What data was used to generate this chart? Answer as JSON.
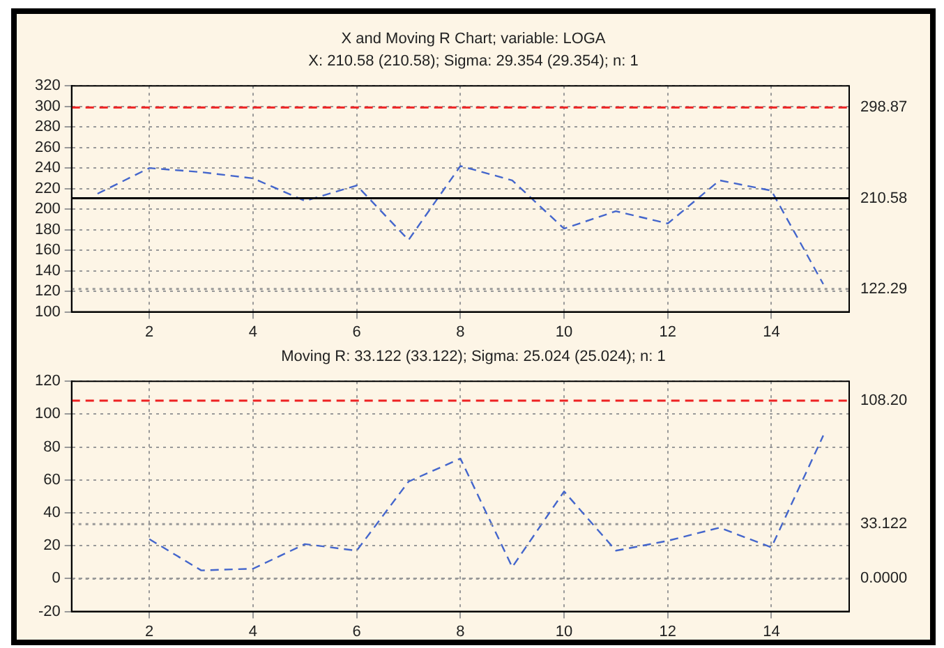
{
  "chart_data": [
    {
      "type": "line",
      "title": "X and Moving R Chart; variable: LOGA",
      "subtitle": "X: 210.58 (210.58); Sigma: 29.354 (29.354); n: 1",
      "x": [
        1,
        2,
        3,
        4,
        5,
        6,
        7,
        8,
        9,
        10,
        11,
        12,
        13,
        14,
        15
      ],
      "series": [
        {
          "color": "#4466cc",
          "values": [
            215,
            240,
            236,
            230,
            208,
            223,
            170,
            242,
            228,
            181,
            198,
            186,
            228,
            218,
            127
          ]
        }
      ],
      "xlim": [
        0.5,
        15.5
      ],
      "xticks": [
        2,
        4,
        6,
        8,
        10,
        12,
        14
      ],
      "ylim": [
        100,
        320
      ],
      "yticks": [
        100,
        120,
        140,
        160,
        180,
        200,
        220,
        240,
        260,
        280,
        300,
        320
      ],
      "ref_lines": [
        {
          "axis": "y",
          "value": 298.87,
          "label": "298.87",
          "color": "#ee2222",
          "line_style": "dashed"
        },
        {
          "axis": "y",
          "value": 210.58,
          "label": "210.58",
          "color": "#000000",
          "line_style": "solid"
        },
        {
          "axis": "y",
          "value": 122.29,
          "label": "122.29",
          "color": "#999999",
          "line_style": "dotted"
        }
      ],
      "grid": true,
      "legend": false,
      "marker": "none",
      "line_style": "dashed"
    },
    {
      "type": "line",
      "title": "Moving R: 33.122 (33.122); Sigma: 25.024 (25.024); n: 1",
      "series": [
        {
          "color": "#4466cc",
          "x": [
            2,
            3,
            4,
            5,
            6,
            7,
            8,
            9,
            10,
            11,
            12,
            13,
            14,
            15
          ],
          "values": [
            24,
            5,
            6,
            21,
            17,
            59,
            73,
            7,
            53,
            17,
            23,
            31,
            19,
            87
          ]
        }
      ],
      "xlim": [
        0.5,
        15.5
      ],
      "xticks": [
        2,
        4,
        6,
        8,
        10,
        12,
        14
      ],
      "ylim": [
        -20,
        120
      ],
      "yticks": [
        -20,
        0,
        20,
        40,
        60,
        80,
        100,
        120
      ],
      "ref_lines": [
        {
          "axis": "y",
          "value": 108.2,
          "label": "108.20",
          "color": "#ee2222",
          "line_style": "dashed"
        },
        {
          "axis": "y",
          "value": 33.122,
          "label": "33.122",
          "color": "#999999",
          "line_style": "dotted"
        },
        {
          "axis": "y",
          "value": 0,
          "label": "0.0000",
          "color": "#999999",
          "line_style": "dotted"
        }
      ],
      "grid": true,
      "legend": false,
      "marker": "none",
      "line_style": "dashed"
    }
  ]
}
